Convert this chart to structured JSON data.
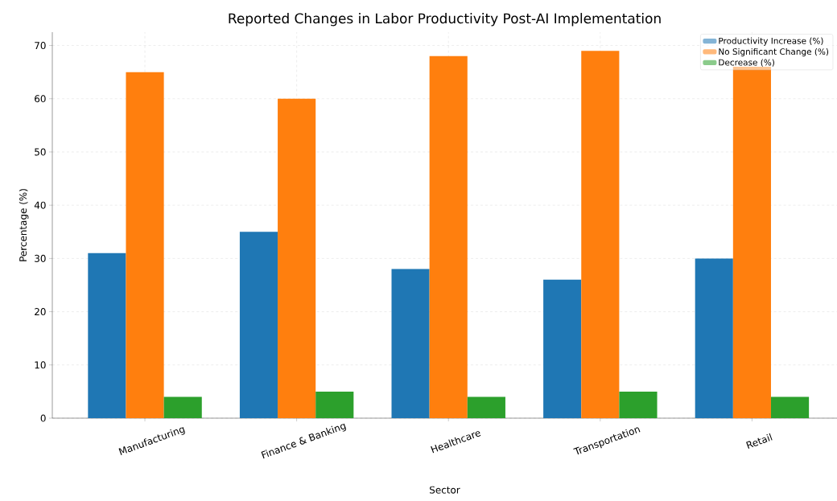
{
  "chart_data": {
    "type": "bar",
    "title": "Reported Changes in Labor Productivity Post-AI Implementation",
    "xlabel": "Sector",
    "ylabel": "Percentage (%)",
    "categories": [
      "Manufacturing",
      "Finance & Banking",
      "Healthcare",
      "Transportation",
      "Retail"
    ],
    "series": [
      {
        "name": "Productivity Increase (%)",
        "color": "#1f77b4",
        "values": [
          31,
          35,
          28,
          26,
          30
        ]
      },
      {
        "name": "No Significant Change (%)",
        "color": "#ff7f0e",
        "values": [
          65,
          60,
          68,
          69,
          66
        ]
      },
      {
        "name": "Decrease (%)",
        "color": "#2ca02c",
        "values": [
          4,
          5,
          4,
          5,
          4
        ]
      }
    ],
    "ylim": [
      0,
      72.5
    ],
    "yticks": [
      0,
      10,
      20,
      30,
      40,
      50,
      60,
      70
    ],
    "grid": true,
    "legend": "top right"
  }
}
